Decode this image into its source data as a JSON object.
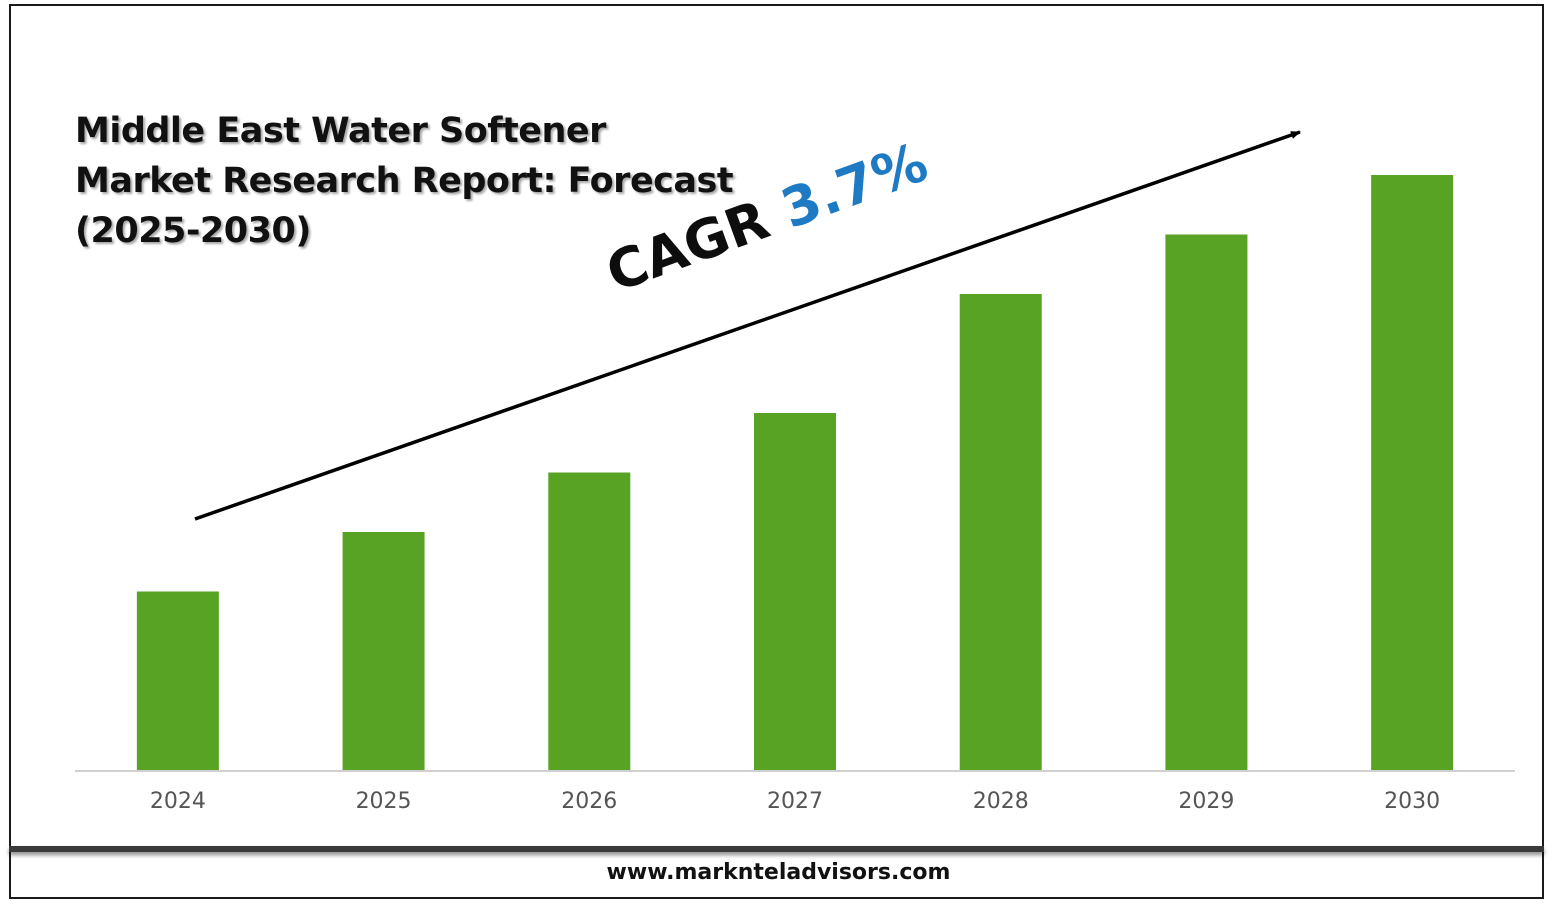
{
  "title_lines": [
    "Middle East Water Softener",
    "Market Research Report: Forecast",
    "(2025-2030)"
  ],
  "cagr": {
    "label": "CAGR",
    "value": "3.7%",
    "value_color": "#1f7ac4"
  },
  "website": "www.marknteladvisors.com",
  "chart_data": {
    "type": "bar",
    "categories": [
      "2024",
      "2025",
      "2026",
      "2027",
      "2028",
      "2029",
      "2030"
    ],
    "series": [
      {
        "values": [
          30,
          40,
          50,
          60,
          80,
          90,
          100
        ],
        "color": "#58a224"
      }
    ],
    "title": "Middle East Water Softener Market Research Report: Forecast (2025-2030)",
    "xlabel": "",
    "ylabel": "",
    "ylim": [
      0,
      100
    ],
    "value_axis_shown": false,
    "grid": false,
    "legend": "none"
  }
}
